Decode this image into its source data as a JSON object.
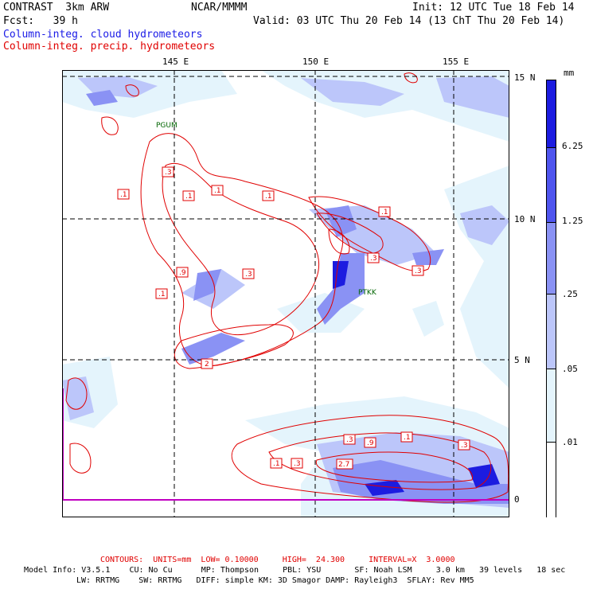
{
  "header": {
    "model": "CONTRAST  3km ARW",
    "org": "NCAR/MMMM",
    "init": "Init: 12 UTC Tue 18 Feb 14",
    "fcst": "Fcst:   39 h",
    "valid": "Valid: 03 UTC Thu 20 Feb 14 (13 ChT Thu 20 Feb 14)",
    "field1": "Column-integ. cloud hydrometeors",
    "field2": "Column-integ. precip. hydrometeors"
  },
  "map": {
    "lon_labels": [
      "145 E",
      "150 E",
      "155 E"
    ],
    "lat_labels": [
      "15 N",
      "10 N",
      "5 N",
      "0"
    ],
    "stations": [
      "PGUM",
      "PTKK"
    ],
    "contour_labels": [
      ".3",
      ".1",
      ".1",
      ".1",
      ".1",
      ".1",
      ".9",
      ".3",
      ".1",
      "2",
      ".1",
      ".3",
      ".3",
      ".3",
      ".9",
      ".3",
      ".1",
      ".3",
      "2.7"
    ]
  },
  "colorbar": {
    "unit": "mm",
    "levels": [
      "6.25",
      "1.25",
      ".25",
      ".05",
      ".01"
    ],
    "colors": [
      "#1c1ce0",
      "#4f55ee",
      "#8a92f4",
      "#bcc6fa",
      "#e4f4fc",
      "#ffffff"
    ]
  },
  "footer": {
    "contours": "CONTOURS:  UNITS=mm  LOW= 0.10000     HIGH=  24.300     INTERVAL=X  3.0000",
    "model_info": "Model Info: V3.5.1    CU: No Cu      MP: Thompson     PBL: YSU       SF: Noah LSM     3.0 km   39 levels   18 sec",
    "model_info2": "LW: RRTMG    SW: RRTMG   DIFF: simple KM: 3D Smagor DAMP: Rayleigh3  SFLAY: Rev MM5"
  }
}
